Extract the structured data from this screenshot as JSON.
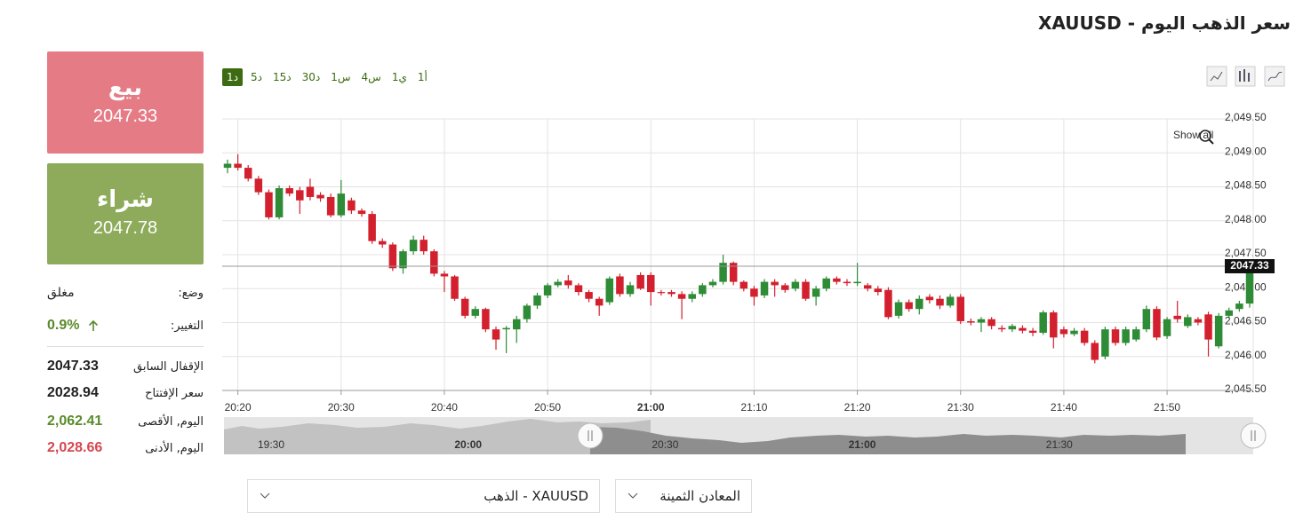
{
  "header": {
    "title": "سعر الذهب اليوم - XAUUSD"
  },
  "quote": {
    "sell_label": "بيع",
    "sell_price": "2047.33",
    "buy_label": "شراء",
    "buy_price": "2047.78"
  },
  "stats": {
    "status_label": "وضع:",
    "status": "مغلق",
    "change_label": "التغيير:",
    "change": "0.9%",
    "rows": [
      [
        "الإقفال السابق",
        "2047.33"
      ],
      [
        "سعر الإفتتاح",
        "2028.94"
      ],
      [
        "اليوم, الأقصى",
        "2,062.41"
      ],
      [
        "اليوم, الأدنى",
        "2,028.66"
      ]
    ]
  },
  "timeframes": [
    "1د",
    "5د",
    "15د",
    "30د",
    "1س",
    "4س",
    "1ي",
    "1أ"
  ],
  "show_all": "Show all",
  "navigator": {
    "ticks": [
      "19:30",
      "20:00",
      "20:30",
      "21:00",
      "21:30"
    ]
  },
  "selects": [
    "XAUUSD - الذهب",
    "المعادن الثمينة"
  ],
  "chart_data": {
    "type": "candlestick",
    "up_color": "#2e8b36",
    "down_color": "#d3202e",
    "grid": true,
    "x": [
      "20:19",
      "20:20",
      "20:21",
      "20:22",
      "20:23",
      "20:24",
      "20:25",
      "20:26",
      "20:27",
      "20:28",
      "20:29",
      "20:30",
      "20:31",
      "20:32",
      "20:33",
      "20:34",
      "20:35",
      "20:36",
      "20:37",
      "20:38",
      "20:39",
      "20:40",
      "20:41",
      "20:42",
      "20:43",
      "20:44",
      "20:45",
      "20:46",
      "20:47",
      "20:48",
      "20:49",
      "20:50",
      "20:51",
      "20:52",
      "20:53",
      "20:54",
      "20:55",
      "20:56",
      "20:57",
      "20:58",
      "20:59",
      "21:00",
      "21:01",
      "21:02",
      "21:03",
      "21:04",
      "21:05",
      "21:06",
      "21:07",
      "21:08",
      "21:09",
      "21:10",
      "21:11",
      "21:12",
      "21:13",
      "21:14",
      "21:15",
      "21:16",
      "21:17",
      "21:18",
      "21:19",
      "21:20",
      "21:21",
      "21:22",
      "21:23",
      "21:24",
      "21:25",
      "21:26",
      "21:27",
      "21:28",
      "21:29",
      "21:30",
      "21:31",
      "21:32",
      "21:33",
      "21:34",
      "21:35",
      "21:36",
      "21:37",
      "21:38",
      "21:39",
      "21:40",
      "21:41",
      "21:42",
      "21:43",
      "21:44",
      "21:45",
      "21:46",
      "21:47",
      "21:48",
      "21:49",
      "21:50",
      "21:51",
      "21:52",
      "21:53",
      "21:54",
      "21:55",
      "21:56",
      "21:57",
      "21:58"
    ],
    "open": [
      2048.78,
      2048.84,
      2048.78,
      2048.62,
      2048.42,
      2048.05,
      2048.48,
      2048.45,
      2048.5,
      2048.38,
      2048.35,
      2048.08,
      2048.3,
      2048.15,
      2048.1,
      2047.7,
      2047.65,
      2047.3,
      2047.55,
      2047.72,
      2047.55,
      2047.22,
      2047.18,
      2046.85,
      2046.6,
      2046.7,
      2046.4,
      2046.4,
      2046.4,
      2046.55,
      2046.75,
      2046.9,
      2047.05,
      2047.12,
      2047.05,
      2046.95,
      2046.85,
      2046.8,
      2047.18,
      2046.92,
      2047.2,
      2047.2,
      2046.95,
      2046.95,
      2046.92,
      2046.85,
      2046.92,
      2047.05,
      2047.1,
      2047.38,
      2047.1,
      2047.0,
      2046.9,
      2047.1,
      2047.05,
      2047.0,
      2047.1,
      2046.88,
      2047.0,
      2047.15,
      2047.1,
      2047.08,
      2047.05,
      2047.0,
      2046.98,
      2046.6,
      2046.8,
      2046.7,
      2046.88,
      2046.85,
      2046.75,
      2046.88,
      2046.52,
      2046.5,
      2046.55,
      2046.42,
      2046.4,
      2046.42,
      2046.38,
      2046.35,
      2046.65,
      2046.4,
      2046.33,
      2046.38,
      2046.2,
      2046.0,
      2046.4,
      2046.2,
      2046.25,
      2046.4,
      2046.7,
      2046.3,
      2046.6,
      2046.45,
      2046.55,
      2046.62,
      2046.15,
      2046.6,
      2046.7,
      2046.78
    ],
    "high": [
      2048.9,
      2048.98,
      2048.82,
      2048.66,
      2048.46,
      2048.52,
      2048.52,
      2048.5,
      2048.62,
      2048.42,
      2048.4,
      2048.6,
      2048.34,
      2048.18,
      2048.14,
      2047.74,
      2047.68,
      2047.58,
      2047.78,
      2047.78,
      2047.58,
      2047.26,
      2047.2,
      2046.88,
      2046.74,
      2046.72,
      2046.44,
      2046.45,
      2046.6,
      2046.78,
      2046.94,
      2047.08,
      2047.14,
      2047.2,
      2047.08,
      2046.98,
      2046.88,
      2047.18,
      2047.22,
      2047.1,
      2047.24,
      2047.24,
      2046.98,
      2046.98,
      2046.96,
      2046.96,
      2047.08,
      2047.14,
      2047.5,
      2047.4,
      2047.12,
      2047.04,
      2047.14,
      2047.14,
      2047.08,
      2047.14,
      2047.14,
      2047.04,
      2047.18,
      2047.18,
      2047.14,
      2047.38,
      2047.08,
      2047.04,
      2047.02,
      2046.84,
      2046.84,
      2046.9,
      2046.92,
      2046.9,
      2046.92,
      2046.92,
      2046.56,
      2046.58,
      2046.58,
      2046.46,
      2046.48,
      2046.46,
      2046.42,
      2046.68,
      2046.68,
      2046.44,
      2046.42,
      2046.42,
      2046.24,
      2046.44,
      2046.44,
      2046.44,
      2046.44,
      2046.75,
      2046.74,
      2046.58,
      2046.82,
      2046.62,
      2046.58,
      2046.66,
      2046.64,
      2046.72,
      2046.82,
      2047.4
    ],
    "low": [
      2048.7,
      2048.74,
      2048.58,
      2048.38,
      2048.02,
      2048.02,
      2048.36,
      2048.1,
      2048.3,
      2048.28,
      2048.05,
      2048.05,
      2048.1,
      2048.06,
      2047.66,
      2047.6,
      2047.26,
      2047.22,
      2047.5,
      2047.5,
      2047.18,
      2046.95,
      2046.82,
      2046.56,
      2046.56,
      2046.36,
      2046.1,
      2046.05,
      2046.2,
      2046.5,
      2046.7,
      2046.86,
      2047.02,
      2047.0,
      2046.9,
      2046.8,
      2046.6,
      2046.76,
      2046.88,
      2046.88,
      2046.98,
      2046.75,
      2046.9,
      2046.88,
      2046.55,
      2046.8,
      2046.88,
      2047.02,
      2047.06,
      2047.05,
      2046.96,
      2046.75,
      2046.86,
      2046.88,
      2046.94,
      2046.96,
      2046.82,
      2046.75,
      2046.96,
      2047.06,
      2047.04,
      2047.04,
      2046.96,
      2046.9,
      2046.55,
      2046.56,
      2046.66,
      2046.62,
      2046.78,
      2046.7,
      2046.72,
      2046.48,
      2046.46,
      2046.36,
      2046.4,
      2046.36,
      2046.36,
      2046.34,
      2046.3,
      2046.32,
      2046.12,
      2046.28,
      2046.3,
      2046.16,
      2045.9,
      2045.96,
      2046.16,
      2046.16,
      2046.22,
      2046.36,
      2046.24,
      2046.26,
      2046.5,
      2046.42,
      2046.46,
      2046.0,
      2046.12,
      2046.56,
      2046.66,
      2046.72
    ],
    "close": [
      2048.84,
      2048.78,
      2048.62,
      2048.42,
      2048.05,
      2048.48,
      2048.4,
      2048.3,
      2048.35,
      2048.33,
      2048.08,
      2048.4,
      2048.15,
      2048.1,
      2047.7,
      2047.65,
      2047.3,
      2047.55,
      2047.72,
      2047.55,
      2047.22,
      2047.18,
      2046.85,
      2046.6,
      2046.7,
      2046.4,
      2046.25,
      2046.42,
      2046.55,
      2046.75,
      2046.9,
      2047.05,
      2047.1,
      2047.05,
      2046.95,
      2046.85,
      2046.75,
      2047.15,
      2046.92,
      2047.05,
      2047.0,
      2046.95,
      2046.94,
      2046.92,
      2046.85,
      2046.92,
      2047.05,
      2047.1,
      2047.38,
      2047.1,
      2047.0,
      2046.88,
      2047.1,
      2047.05,
      2046.98,
      2047.1,
      2046.85,
      2047.0,
      2047.15,
      2047.1,
      2047.08,
      2047.1,
      2047.0,
      2046.95,
      2046.58,
      2046.8,
      2046.7,
      2046.85,
      2046.83,
      2046.75,
      2046.88,
      2046.52,
      2046.5,
      2046.55,
      2046.45,
      2046.4,
      2046.45,
      2046.38,
      2046.35,
      2046.65,
      2046.28,
      2046.33,
      2046.38,
      2046.2,
      2045.95,
      2046.4,
      2046.2,
      2046.4,
      2046.4,
      2046.7,
      2046.28,
      2046.55,
      2046.55,
      2046.58,
      2046.5,
      2046.25,
      2046.6,
      2046.68,
      2046.78,
      2047.33
    ],
    "last_price": 2047.33,
    "xlim": [
      "20:19",
      "21:58"
    ],
    "xticks": [
      "20:20",
      "20:30",
      "20:40",
      "20:50",
      "21:00",
      "21:10",
      "21:20",
      "21:30",
      "21:40",
      "21:50"
    ],
    "ylim": [
      2045.5,
      2049.5
    ],
    "yticks": [
      {
        "value": 2045.5,
        "label": "2,045.50"
      },
      {
        "value": 2046,
        "label": "2,046.00"
      },
      {
        "value": 2046.5,
        "label": "2,046.50"
      },
      {
        "value": 2047,
        "label": "2,047.00"
      },
      {
        "value": 2047.5,
        "label": "2,047.50"
      },
      {
        "value": 2048,
        "label": "2,048.00"
      },
      {
        "value": 2048.5,
        "label": "2,048.50"
      },
      {
        "value": 2049,
        "label": "2,049.00"
      },
      {
        "value": 2049.5,
        "label": "2,049.50"
      }
    ]
  }
}
